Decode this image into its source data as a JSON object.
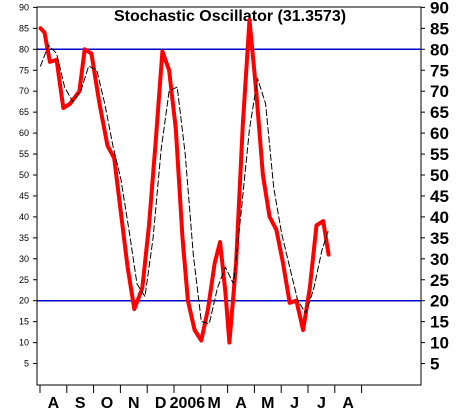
{
  "chart_data": {
    "type": "line",
    "title": "Stochastic Oscillator (31.3573)",
    "ylim": [
      0,
      90
    ],
    "yticks": [
      5,
      10,
      15,
      20,
      25,
      30,
      35,
      40,
      45,
      50,
      55,
      60,
      65,
      70,
      75,
      80,
      85,
      90
    ],
    "xlabels": [
      "A",
      "S",
      "O",
      "N",
      "D",
      "2006",
      "M",
      "A",
      "M",
      "J",
      "J",
      "A"
    ],
    "reference_lines": [
      {
        "value": 80,
        "color": "#0000cc"
      },
      {
        "value": 20,
        "color": "#0000cc"
      }
    ],
    "series": [
      {
        "style": "solid",
        "color": "#ff0000",
        "values": [
          {
            "x": 0.0,
            "y": 85
          },
          {
            "x": 0.15,
            "y": 84
          },
          {
            "x": 0.35,
            "y": 77
          },
          {
            "x": 0.6,
            "y": 77.5
          },
          {
            "x": 0.85,
            "y": 66
          },
          {
            "x": 1.1,
            "y": 67
          },
          {
            "x": 1.45,
            "y": 70
          },
          {
            "x": 1.65,
            "y": 80
          },
          {
            "x": 1.9,
            "y": 79
          },
          {
            "x": 2.2,
            "y": 67
          },
          {
            "x": 2.5,
            "y": 57
          },
          {
            "x": 2.75,
            "y": 54
          },
          {
            "x": 3.0,
            "y": 41
          },
          {
            "x": 3.25,
            "y": 28
          },
          {
            "x": 3.5,
            "y": 18
          },
          {
            "x": 3.8,
            "y": 23
          },
          {
            "x": 4.05,
            "y": 38
          },
          {
            "x": 4.3,
            "y": 58
          },
          {
            "x": 4.55,
            "y": 79.5
          },
          {
            "x": 4.8,
            "y": 75
          },
          {
            "x": 5.05,
            "y": 61
          },
          {
            "x": 5.3,
            "y": 35
          },
          {
            "x": 5.5,
            "y": 20
          },
          {
            "x": 5.75,
            "y": 13
          },
          {
            "x": 6.0,
            "y": 10.5
          },
          {
            "x": 6.25,
            "y": 18
          },
          {
            "x": 6.5,
            "y": 29
          },
          {
            "x": 6.7,
            "y": 34
          },
          {
            "x": 6.9,
            "y": 22
          },
          {
            "x": 7.05,
            "y": 10
          },
          {
            "x": 7.3,
            "y": 29
          },
          {
            "x": 7.55,
            "y": 62
          },
          {
            "x": 7.8,
            "y": 87
          },
          {
            "x": 8.05,
            "y": 70
          },
          {
            "x": 8.3,
            "y": 50
          },
          {
            "x": 8.55,
            "y": 40
          },
          {
            "x": 8.8,
            "y": 37
          },
          {
            "x": 9.05,
            "y": 29
          },
          {
            "x": 9.3,
            "y": 19.5
          },
          {
            "x": 9.55,
            "y": 20
          },
          {
            "x": 9.8,
            "y": 13
          },
          {
            "x": 10.05,
            "y": 23
          },
          {
            "x": 10.3,
            "y": 38
          },
          {
            "x": 10.55,
            "y": 39
          },
          {
            "x": 10.75,
            "y": 31
          }
        ]
      },
      {
        "style": "dashed",
        "color": "#000000",
        "values": [
          {
            "x": 0.0,
            "y": 76
          },
          {
            "x": 0.3,
            "y": 81
          },
          {
            "x": 0.6,
            "y": 79
          },
          {
            "x": 0.9,
            "y": 71
          },
          {
            "x": 1.2,
            "y": 67.5
          },
          {
            "x": 1.5,
            "y": 70
          },
          {
            "x": 1.8,
            "y": 76
          },
          {
            "x": 2.1,
            "y": 75
          },
          {
            "x": 2.4,
            "y": 67
          },
          {
            "x": 2.7,
            "y": 57
          },
          {
            "x": 3.0,
            "y": 49
          },
          {
            "x": 3.3,
            "y": 37
          },
          {
            "x": 3.6,
            "y": 24
          },
          {
            "x": 3.9,
            "y": 21
          },
          {
            "x": 4.2,
            "y": 35
          },
          {
            "x": 4.5,
            "y": 56
          },
          {
            "x": 4.8,
            "y": 70
          },
          {
            "x": 5.1,
            "y": 71
          },
          {
            "x": 5.4,
            "y": 55
          },
          {
            "x": 5.7,
            "y": 31
          },
          {
            "x": 6.0,
            "y": 15
          },
          {
            "x": 6.3,
            "y": 14.5
          },
          {
            "x": 6.6,
            "y": 23
          },
          {
            "x": 6.9,
            "y": 28
          },
          {
            "x": 7.2,
            "y": 24
          },
          {
            "x": 7.5,
            "y": 42
          },
          {
            "x": 7.8,
            "y": 61
          },
          {
            "x": 8.1,
            "y": 73
          },
          {
            "x": 8.4,
            "y": 67
          },
          {
            "x": 8.7,
            "y": 47
          },
          {
            "x": 9.0,
            "y": 36
          },
          {
            "x": 9.3,
            "y": 28
          },
          {
            "x": 9.6,
            "y": 20
          },
          {
            "x": 9.9,
            "y": 17
          },
          {
            "x": 10.2,
            "y": 23
          },
          {
            "x": 10.5,
            "y": 32
          },
          {
            "x": 10.75,
            "y": 37
          }
        ]
      }
    ]
  }
}
